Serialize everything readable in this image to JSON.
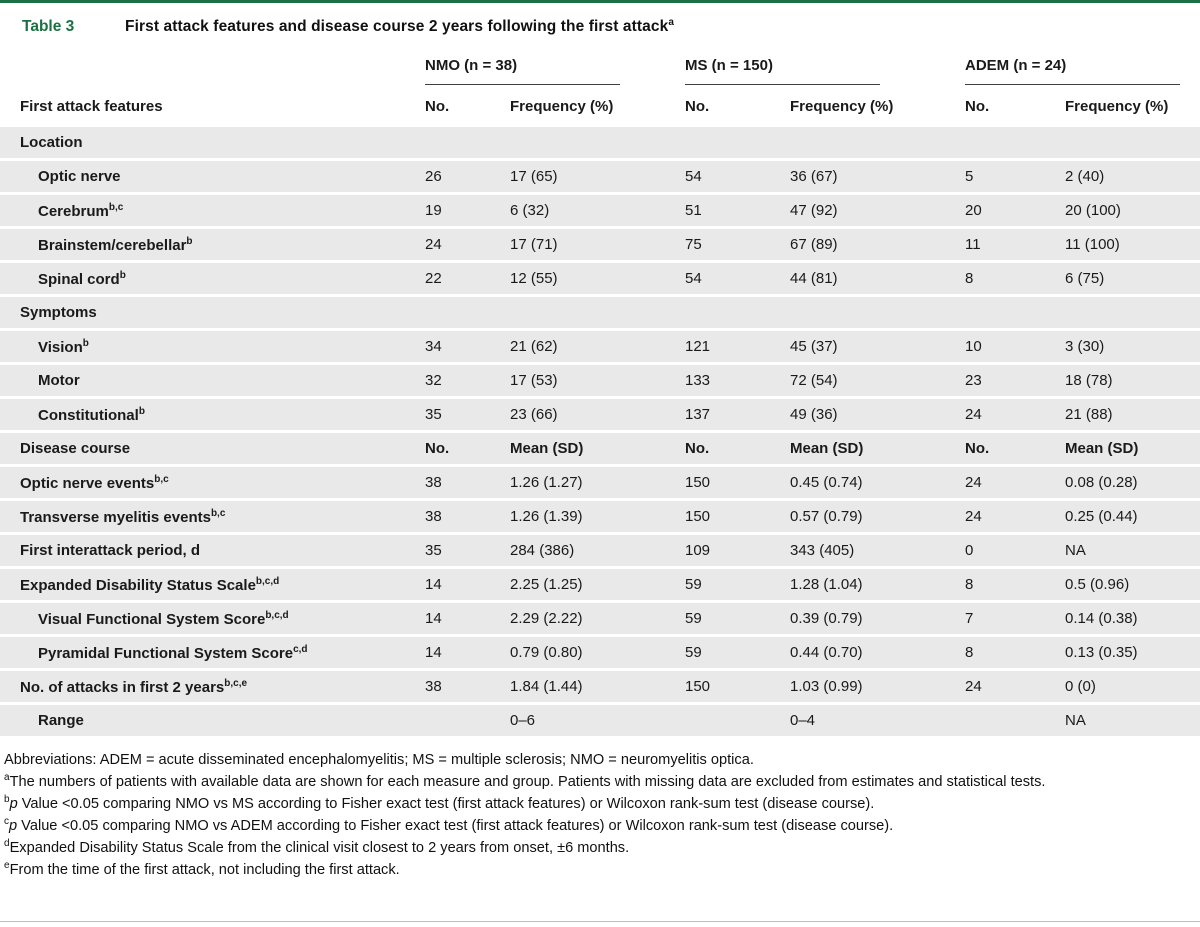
{
  "colors": {
    "accent_green": "#1a7144",
    "row_gray": "#e9e9e9",
    "rule_gray": "#bdbdbd"
  },
  "header": {
    "table_label": "Table 3",
    "title": "First attack features and disease course 2 years following the first attack",
    "title_sup": "a"
  },
  "columns": {
    "first_header": "First attack features",
    "groups": [
      {
        "label": "NMO (n = 38)"
      },
      {
        "label": "MS (n = 150)"
      },
      {
        "label": "ADEM (n = 24)"
      }
    ],
    "sub_headers": [
      "No.",
      "Frequency (%)"
    ]
  },
  "table": {
    "rows": [
      {
        "label": "Location",
        "sup": "",
        "indent": 0,
        "kind": "section",
        "values": [
          "",
          "",
          "",
          "",
          "",
          ""
        ]
      },
      {
        "label": "Optic nerve",
        "sup": "",
        "indent": 1,
        "kind": "item",
        "values": [
          "26",
          "17 (65)",
          "54",
          "36 (67)",
          "5",
          "2 (40)"
        ]
      },
      {
        "label": "Cerebrum",
        "sup": "b,c",
        "indent": 1,
        "kind": "item",
        "values": [
          "19",
          "6 (32)",
          "51",
          "47 (92)",
          "20",
          "20 (100)"
        ]
      },
      {
        "label": "Brainstem/cerebellar",
        "sup": "b",
        "indent": 1,
        "kind": "item",
        "values": [
          "24",
          "17 (71)",
          "75",
          "67 (89)",
          "11",
          "11 (100)"
        ]
      },
      {
        "label": "Spinal cord",
        "sup": "b",
        "indent": 1,
        "kind": "item",
        "values": [
          "22",
          "12 (55)",
          "54",
          "44 (81)",
          "8",
          "6 (75)"
        ]
      },
      {
        "label": "Symptoms",
        "sup": "",
        "indent": 0,
        "kind": "section",
        "values": [
          "",
          "",
          "",
          "",
          "",
          ""
        ]
      },
      {
        "label": "Vision",
        "sup": "b",
        "indent": 1,
        "kind": "item",
        "values": [
          "34",
          "21 (62)",
          "121",
          "45 (37)",
          "10",
          "3 (30)"
        ]
      },
      {
        "label": "Motor",
        "sup": "",
        "indent": 1,
        "kind": "item",
        "values": [
          "32",
          "17 (53)",
          "133",
          "72 (54)",
          "23",
          "18 (78)"
        ]
      },
      {
        "label": "Constitutional",
        "sup": "b",
        "indent": 1,
        "kind": "item",
        "values": [
          "35",
          "23 (66)",
          "137",
          "49 (36)",
          "24",
          "21 (88)"
        ]
      },
      {
        "label": "Disease course",
        "sup": "",
        "indent": 0,
        "kind": "header",
        "values": [
          "No.",
          "Mean (SD)",
          "No.",
          "Mean (SD)",
          "No.",
          "Mean (SD)"
        ]
      },
      {
        "label": "Optic nerve events",
        "sup": "b,c",
        "indent": 0,
        "kind": "item",
        "values": [
          "38",
          "1.26 (1.27)",
          "150",
          "0.45 (0.74)",
          "24",
          "0.08 (0.28)"
        ]
      },
      {
        "label": "Transverse myelitis events",
        "sup": "b,c",
        "indent": 0,
        "kind": "item",
        "values": [
          "38",
          "1.26 (1.39)",
          "150",
          "0.57 (0.79)",
          "24",
          "0.25 (0.44)"
        ]
      },
      {
        "label": "First interattack period, d",
        "sup": "",
        "indent": 0,
        "kind": "item",
        "values": [
          "35",
          "284 (386)",
          "109",
          "343 (405)",
          "0",
          "NA"
        ]
      },
      {
        "label": "Expanded Disability Status Scale",
        "sup": "b,c,d",
        "indent": 0,
        "kind": "item",
        "values": [
          "14",
          "2.25 (1.25)",
          "59",
          "1.28 (1.04)",
          "8",
          "0.5 (0.96)"
        ]
      },
      {
        "label": "Visual Functional System Score",
        "sup": "b,c,d",
        "indent": 1,
        "kind": "item",
        "values": [
          "14",
          "2.29 (2.22)",
          "59",
          "0.39 (0.79)",
          "7",
          "0.14 (0.38)"
        ]
      },
      {
        "label": "Pyramidal Functional System Score",
        "sup": "c,d",
        "indent": 1,
        "kind": "item",
        "values": [
          "14",
          "0.79 (0.80)",
          "59",
          "0.44 (0.70)",
          "8",
          "0.13 (0.35)"
        ]
      },
      {
        "label": "No. of attacks in first 2 years",
        "sup": "b,c,e",
        "indent": 0,
        "kind": "item",
        "values": [
          "38",
          "1.84 (1.44)",
          "150",
          "1.03 (0.99)",
          "24",
          "0 (0)"
        ]
      },
      {
        "label": "Range",
        "sup": "",
        "indent": 1,
        "kind": "item",
        "values": [
          "",
          "0–6",
          "",
          "0–4",
          "",
          "NA"
        ]
      }
    ]
  },
  "footnotes": [
    {
      "sup": "",
      "lead_italic": "",
      "text": "Abbreviations: ADEM = acute disseminated encephalomyelitis; MS = multiple sclerosis; NMO = neuromyelitis optica."
    },
    {
      "sup": "a",
      "lead_italic": "",
      "text": "The numbers of patients with available data are shown for each measure and group. Patients with missing data are excluded from estimates and statistical tests."
    },
    {
      "sup": "b",
      "lead_italic": "p",
      "text": " Value <0.05 comparing NMO vs MS according to Fisher exact test (first attack features) or Wilcoxon rank-sum test (disease course)."
    },
    {
      "sup": "c",
      "lead_italic": "p",
      "text": " Value <0.05 comparing NMO vs ADEM according to Fisher exact test (first attack features) or Wilcoxon rank-sum test (disease course)."
    },
    {
      "sup": "d",
      "lead_italic": "",
      "text": "Expanded Disability Status Scale from the clinical visit closest to 2 years from onset, ±6 months."
    },
    {
      "sup": "e",
      "lead_italic": "",
      "text": "From the time of the first attack, not including the first attack."
    }
  ]
}
